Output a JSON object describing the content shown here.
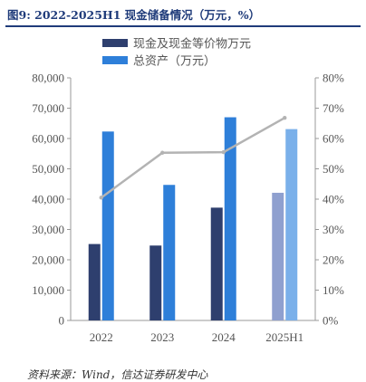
{
  "title": "图9: 2022-2025H1  现金储备情况（万元，%）",
  "source": "资料来源：Wind，信达证券研发中心",
  "colors": {
    "cash_bar": "#2e3f6e",
    "cash_bar_partial": "#8fa0cf",
    "assets_bar": "#2e7fd9",
    "assets_bar_partial": "#7ab0ea",
    "ratio_line": "#b3b3b3",
    "axis": "#999999",
    "tick_text": "#555555"
  },
  "chart_data": {
    "type": "bar",
    "categories": [
      "2022",
      "2023",
      "2024",
      "2025H1"
    ],
    "series": [
      {
        "name": "现金及现金等价物万元",
        "kind": "bar",
        "axis": "left",
        "values": [
          25200,
          24700,
          37200,
          42100
        ]
      },
      {
        "name": "总资产（万元）",
        "kind": "bar",
        "axis": "left",
        "values": [
          62300,
          44700,
          67000,
          63100
        ]
      },
      {
        "name": "",
        "kind": "line",
        "axis": "right",
        "values": [
          40.5,
          55.3,
          55.5,
          66.8
        ]
      }
    ],
    "left_axis": {
      "min": 0,
      "max": 80000,
      "ticks": [
        "0",
        "10,000",
        "20,000",
        "30,000",
        "40,000",
        "50,000",
        "60,000",
        "70,000",
        "80,000"
      ]
    },
    "right_axis": {
      "min": 0,
      "max": 80,
      "ticks": [
        "0%",
        "10%",
        "20%",
        "30%",
        "40%",
        "50%",
        "60%",
        "70%",
        "80%"
      ]
    },
    "legend_position": "top",
    "grid": false
  }
}
